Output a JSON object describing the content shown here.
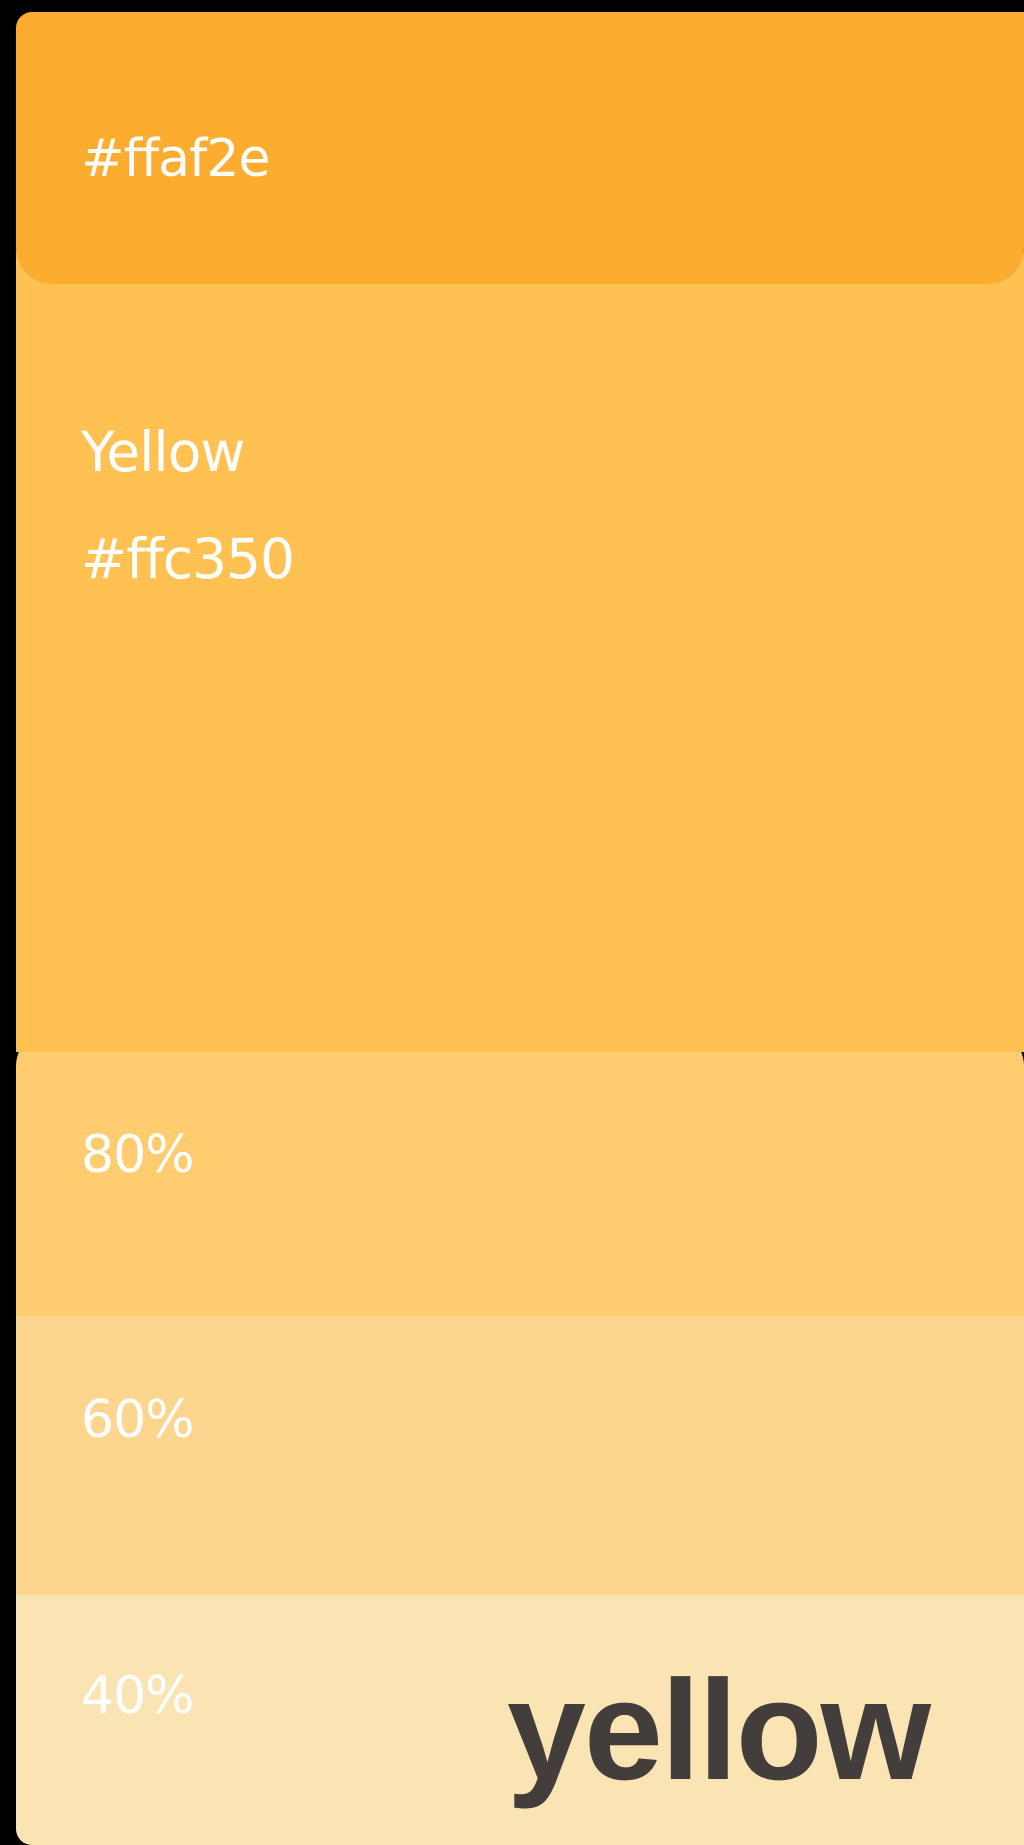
{
  "palette": {
    "shade_dark": {
      "hex": "#ffaf2e",
      "color": "#fcac2f"
    },
    "base": {
      "name": "Yellow",
      "hex": "#ffc350",
      "color": "#ffc252"
    },
    "tints": [
      {
        "label": "80%",
        "color": "#ffcd6f"
      },
      {
        "label": "60%",
        "color": "#fcd58f"
      },
      {
        "label": "40%",
        "color": "#fbe4b3"
      }
    ]
  },
  "watermark": {
    "text": "yellow",
    "color": "#433e3b"
  }
}
